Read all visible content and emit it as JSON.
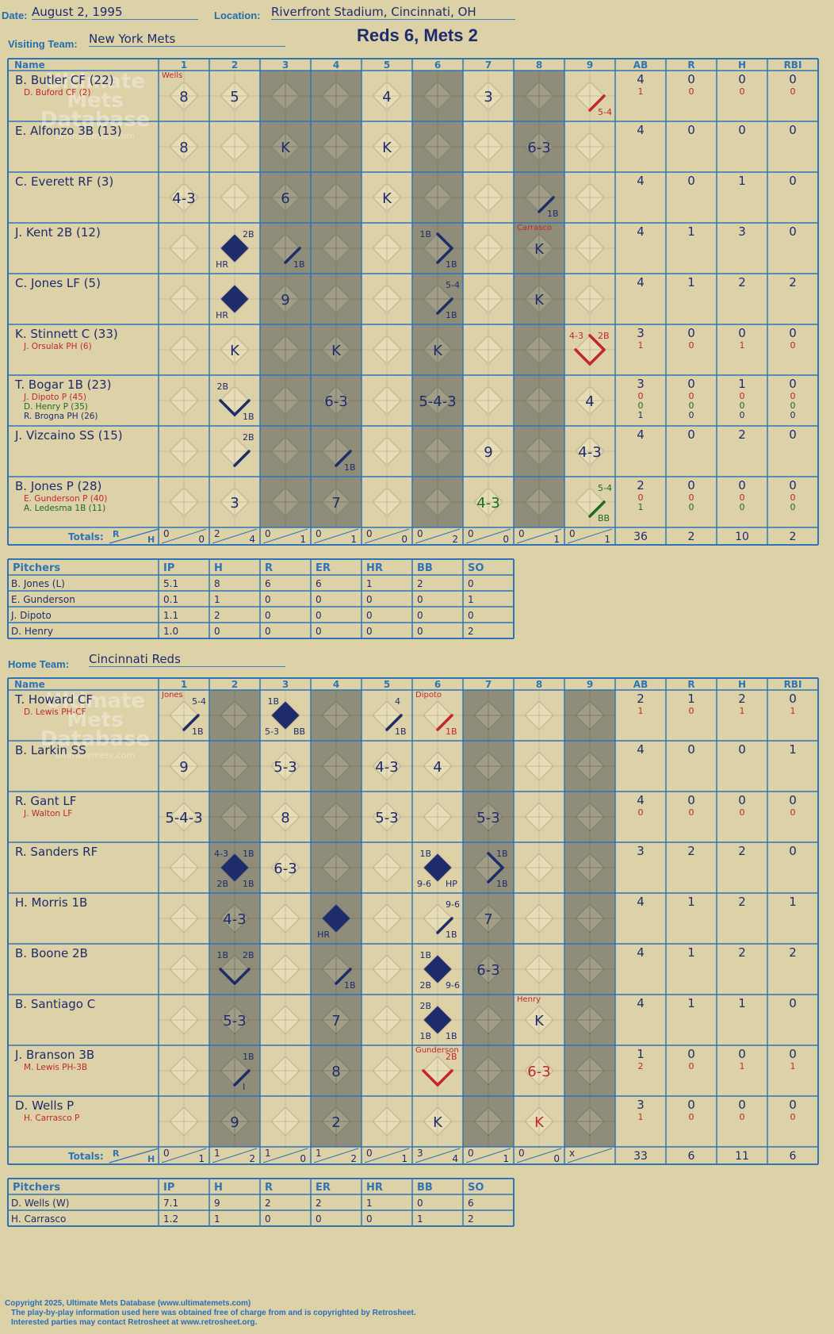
{
  "header": {
    "date_label": "Date:",
    "date": "August 2, 1995",
    "location_label": "Location:",
    "location": "Riverfront Stadium, Cincinnati, OH",
    "visiting_label": "Visiting Team:",
    "visiting_team": "New York Mets",
    "home_label": "Home Team:",
    "home_team": "Cincinnati Reds",
    "score_title": "Reds 6, Mets 2"
  },
  "colors": {
    "grid": "#2f74b5",
    "ink": "#1e2c6b",
    "red": "#c0282a",
    "green": "#1d6b1d",
    "shade": "#8f8c7a",
    "paper": "#ddd1a8"
  },
  "columns": {
    "name": "Name",
    "innings": [
      "1",
      "2",
      "3",
      "4",
      "5",
      "6",
      "7",
      "8",
      "9"
    ],
    "stats": [
      "AB",
      "R",
      "H",
      "RBI"
    ]
  },
  "totals_label": "Totals:",
  "rh_labels": [
    "R",
    "H"
  ],
  "watermark": [
    "Ultimate",
    "Mets",
    "Database",
    "ultimatemets.com"
  ],
  "visitors": {
    "shaded_innings": [
      3,
      4,
      6,
      8
    ],
    "rows": [
      {
        "name": "B. Butler CF (22)",
        "subs": [
          {
            "name": "D. Buford CF (2)",
            "color": "red"
          }
        ],
        "stats": [
          [
            "4",
            "0",
            "0",
            "0"
          ],
          [
            "1",
            "0",
            "0",
            "0"
          ]
        ],
        "stat_colors": [
          "ink",
          "red"
        ],
        "cells": {
          "1": {
            "text": "8",
            "note": "Wells",
            "noteColor": "red"
          },
          "2": {
            "text": "5"
          },
          "5": {
            "text": "4"
          },
          "7": {
            "text": "3"
          },
          "9": {
            "paths": [
              [
                3,
                4
              ]
            ],
            "pathColor": "red",
            "br": "5-4",
            "brColor": "red"
          }
        }
      },
      {
        "name": "E. Alfonzo 3B (13)",
        "subs": [],
        "stats": [
          [
            "4",
            "0",
            "0",
            "0"
          ]
        ],
        "stat_colors": [
          "ink"
        ],
        "cells": {
          "1": {
            "text": "8"
          },
          "3": {
            "text": "K"
          },
          "5": {
            "text": "K"
          },
          "8": {
            "text": "6-3"
          }
        }
      },
      {
        "name": "C. Everett RF (3)",
        "subs": [],
        "stats": [
          [
            "4",
            "0",
            "1",
            "0"
          ]
        ],
        "stat_colors": [
          "ink"
        ],
        "cells": {
          "1": {
            "text": "4-3"
          },
          "3": {
            "text": "6"
          },
          "5": {
            "text": "K"
          },
          "8": {
            "paths": [
              [
                3,
                4
              ]
            ],
            "br": "1B"
          }
        }
      },
      {
        "name": "J. Kent 2B (12)",
        "subs": [],
        "stats": [
          [
            "4",
            "1",
            "3",
            "0"
          ]
        ],
        "stat_colors": [
          "ink"
        ],
        "cells": {
          "2": {
            "fill": true,
            "tr": "2B",
            "bl": "HR"
          },
          "3": {
            "paths": [
              [
                3,
                4
              ]
            ],
            "br": "1B"
          },
          "6": {
            "paths": [
              [
                3,
                4
              ],
              [
                4,
                1
              ]
            ],
            "tl": "1B",
            "br": "1B"
          },
          "8": {
            "text": "K",
            "note": "Carrasco",
            "noteColor": "red"
          }
        }
      },
      {
        "name": "C. Jones LF (5)",
        "subs": [],
        "stats": [
          [
            "4",
            "1",
            "2",
            "2"
          ]
        ],
        "stat_colors": [
          "ink"
        ],
        "cells": {
          "2": {
            "fill": true,
            "bl": "HR"
          },
          "3": {
            "text": "9"
          },
          "6": {
            "paths": [
              [
                3,
                4
              ]
            ],
            "tr": "5-4",
            "br": "1B"
          },
          "8": {
            "text": "K"
          }
        }
      },
      {
        "name": "K. Stinnett C (33)",
        "subs": [
          {
            "name": "J. Orsulak PH (6)",
            "color": "red"
          }
        ],
        "stats": [
          [
            "3",
            "0",
            "0",
            "0"
          ],
          [
            "1",
            "0",
            "1",
            "0"
          ]
        ],
        "stat_colors": [
          "ink",
          "red"
        ],
        "cells": {
          "2": {
            "text": "K"
          },
          "4": {
            "text": "K"
          },
          "6": {
            "text": "K"
          },
          "9": {
            "paths": [
              [
                2,
                3
              ],
              [
                3,
                4
              ],
              [
                4,
                1
              ]
            ],
            "pathColor": "red",
            "tl": "4-3",
            "tr": "2B",
            "tlColor": "red",
            "trColor": "red"
          }
        }
      },
      {
        "name": "T. Bogar 1B (23)",
        "subs": [
          {
            "name": "J. Dipoto P (45)",
            "color": "red"
          },
          {
            "name": "D. Henry P (35)",
            "color": "green"
          },
          {
            "name": "R. Brogna PH (26)",
            "color": "ink"
          }
        ],
        "stats": [
          [
            "3",
            "0",
            "1",
            "0"
          ],
          [
            "0",
            "0",
            "0",
            "0"
          ],
          [
            "0",
            "0",
            "0",
            "0"
          ],
          [
            "1",
            "0",
            "0",
            "0"
          ]
        ],
        "stat_colors": [
          "ink",
          "red",
          "green",
          "ink"
        ],
        "cells": {
          "2": {
            "paths": [
              [
                2,
                3
              ],
              [
                3,
                4
              ]
            ],
            "tl": "2B",
            "br": "1B"
          },
          "4": {
            "text": "6-3"
          },
          "6": {
            "text": "5-4-3"
          },
          "9": {
            "text": "4"
          }
        }
      },
      {
        "name": "J. Vizcaino SS (15)",
        "subs": [],
        "stats": [
          [
            "4",
            "0",
            "2",
            "0"
          ]
        ],
        "stat_colors": [
          "ink"
        ],
        "cells": {
          "2": {
            "paths": [
              [
                3,
                4
              ]
            ],
            "tr": "2B"
          },
          "4": {
            "paths": [
              [
                3,
                4
              ]
            ],
            "br": "1B"
          },
          "7": {
            "text": "9"
          },
          "9": {
            "text": "4-3"
          }
        }
      },
      {
        "name": "B. Jones P (28)",
        "subs": [
          {
            "name": "E. Gunderson P (40)",
            "color": "red"
          },
          {
            "name": "A. Ledesma 1B (11)",
            "color": "green"
          }
        ],
        "stats": [
          [
            "2",
            "0",
            "0",
            "0"
          ],
          [
            "0",
            "0",
            "0",
            "0"
          ],
          [
            "1",
            "0",
            "0",
            "0"
          ]
        ],
        "stat_colors": [
          "ink",
          "red",
          "green"
        ],
        "cells": {
          "2": {
            "text": "3"
          },
          "4": {
            "text": "7"
          },
          "7": {
            "text": "4-3",
            "textColor": "green"
          },
          "9": {
            "paths": [
              [
                3,
                4
              ]
            ],
            "pathColor": "green",
            "tr": "5-4",
            "br": "BB",
            "trColor": "green",
            "brColor": "green"
          }
        }
      }
    ],
    "totals": [
      [
        "0",
        "0"
      ],
      [
        "2",
        "4"
      ],
      [
        "0",
        "1"
      ],
      [
        "0",
        "1"
      ],
      [
        "0",
        "0"
      ],
      [
        "0",
        "2"
      ],
      [
        "0",
        "0"
      ],
      [
        "0",
        "1"
      ],
      [
        "0",
        "1"
      ]
    ],
    "totals_stats": [
      "36",
      "2",
      "10",
      "2"
    ],
    "pitchers": {
      "headers": [
        "Pitchers",
        "IP",
        "H",
        "R",
        "ER",
        "HR",
        "BB",
        "SO"
      ],
      "rows": [
        [
          "B. Jones (L)",
          "5.1",
          "8",
          "6",
          "6",
          "1",
          "2",
          "0"
        ],
        [
          "E. Gunderson",
          "0.1",
          "1",
          "0",
          "0",
          "0",
          "0",
          "1"
        ],
        [
          "J. Dipoto",
          "1.1",
          "2",
          "0",
          "0",
          "0",
          "0",
          "0"
        ],
        [
          "D. Henry",
          "1.0",
          "0",
          "0",
          "0",
          "0",
          "0",
          "2"
        ]
      ]
    }
  },
  "home": {
    "shaded_innings": [
      2,
      4,
      7,
      9
    ],
    "rows": [
      {
        "name": "T. Howard CF",
        "subs": [
          {
            "name": "D. Lewis PH-CF",
            "color": "red"
          }
        ],
        "stats": [
          [
            "2",
            "1",
            "2",
            "0"
          ],
          [
            "1",
            "0",
            "1",
            "1"
          ]
        ],
        "stat_colors": [
          "ink",
          "red"
        ],
        "cells": {
          "1": {
            "paths": [
              [
                3,
                4
              ]
            ],
            "tr": "5-4",
            "br": "1B",
            "note": "Jones",
            "noteColor": "red"
          },
          "3": {
            "fill": true,
            "tl": "1B",
            "bl": "5-3",
            "br": "BB"
          },
          "5": {
            "paths": [
              [
                3,
                4
              ]
            ],
            "tr": "4",
            "br": "1B"
          },
          "6": {
            "paths": [
              [
                3,
                4
              ]
            ],
            "pathColor": "red",
            "br": "1B",
            "brColor": "red",
            "note": "Dipoto",
            "noteColor": "red"
          }
        }
      },
      {
        "name": "B. Larkin SS",
        "subs": [],
        "stats": [
          [
            "4",
            "0",
            "0",
            "1"
          ]
        ],
        "stat_colors": [
          "ink"
        ],
        "cells": {
          "1": {
            "text": "9"
          },
          "3": {
            "text": "5-3"
          },
          "5": {
            "text": "4-3"
          },
          "6": {
            "text": "4"
          }
        }
      },
      {
        "name": "R. Gant LF",
        "subs": [
          {
            "name": "J. Walton LF",
            "color": "red"
          }
        ],
        "stats": [
          [
            "4",
            "0",
            "0",
            "0"
          ],
          [
            "0",
            "0",
            "0",
            "0"
          ]
        ],
        "stat_colors": [
          "ink",
          "red"
        ],
        "cells": {
          "1": {
            "text": "5-4-3"
          },
          "3": {
            "text": "8"
          },
          "5": {
            "text": "5-3"
          },
          "7": {
            "text": "5-3"
          }
        }
      },
      {
        "name": "R. Sanders RF",
        "subs": [],
        "stats": [
          [
            "3",
            "2",
            "2",
            "0"
          ]
        ],
        "stat_colors": [
          "ink"
        ],
        "cells": {
          "2": {
            "fill": true,
            "tl": "4-3",
            "tr": "1B",
            "bl": "2B",
            "br": "1B"
          },
          "3": {
            "text": "6-3"
          },
          "6": {
            "fill": true,
            "tl": "1B",
            "bl": "9-6",
            "br": "HP"
          },
          "7": {
            "paths": [
              [
                3,
                4
              ],
              [
                4,
                1
              ]
            ],
            "tr": "1B",
            "br": "1B"
          }
        }
      },
      {
        "name": "H. Morris 1B",
        "subs": [],
        "stats": [
          [
            "4",
            "1",
            "2",
            "1"
          ]
        ],
        "stat_colors": [
          "ink"
        ],
        "cells": {
          "2": {
            "text": "4-3"
          },
          "4": {
            "fill": true,
            "bl": "HR"
          },
          "6": {
            "paths": [
              [
                3,
                4
              ]
            ],
            "tr": "9-6",
            "br": "1B"
          },
          "7": {
            "text": "7"
          }
        }
      },
      {
        "name": "B. Boone 2B",
        "subs": [],
        "stats": [
          [
            "4",
            "1",
            "2",
            "2"
          ]
        ],
        "stat_colors": [
          "ink"
        ],
        "cells": {
          "2": {
            "paths": [
              [
                2,
                3
              ],
              [
                3,
                4
              ]
            ],
            "tl": "1B",
            "tr": "2B"
          },
          "4": {
            "paths": [
              [
                3,
                4
              ]
            ],
            "br": "1B"
          },
          "6": {
            "fill": true,
            "tl": "1B",
            "bl": "2B",
            "br": "9-6"
          },
          "7": {
            "text": "6-3"
          }
        }
      },
      {
        "name": "B. Santiago C",
        "subs": [],
        "stats": [
          [
            "4",
            "1",
            "1",
            "0"
          ]
        ],
        "stat_colors": [
          "ink"
        ],
        "cells": {
          "2": {
            "text": "5-3"
          },
          "4": {
            "text": "7"
          },
          "6": {
            "fill": true,
            "tl": "2B",
            "bl": "1B",
            "br": "1B"
          },
          "8": {
            "text": "K",
            "note": "Henry",
            "noteColor": "red"
          }
        }
      },
      {
        "name": "J. Branson 3B",
        "subs": [
          {
            "name": "M. Lewis PH-3B",
            "color": "red"
          }
        ],
        "stats": [
          [
            "1",
            "0",
            "0",
            "0"
          ],
          [
            "2",
            "0",
            "1",
            "1"
          ]
        ],
        "stat_colors": [
          "ink",
          "red"
        ],
        "cells": {
          "2": {
            "paths": [
              [
                3,
                4
              ]
            ],
            "tr": "1B",
            "br": "I"
          },
          "4": {
            "text": "8"
          },
          "6": {
            "paths": [
              [
                2,
                3
              ],
              [
                3,
                4
              ]
            ],
            "pathColor": "red",
            "tr": "2B",
            "trColor": "red",
            "note": "Gunderson",
            "noteColor": "red"
          },
          "8": {
            "text": "6-3",
            "textColor": "red"
          }
        }
      },
      {
        "name": "D. Wells P",
        "subs": [
          {
            "name": "H. Carrasco P",
            "color": "red"
          }
        ],
        "stats": [
          [
            "3",
            "0",
            "0",
            "0"
          ],
          [
            "1",
            "0",
            "0",
            "0"
          ]
        ],
        "stat_colors": [
          "ink",
          "red"
        ],
        "cells": {
          "2": {
            "text": "9"
          },
          "4": {
            "text": "2"
          },
          "6": {
            "text": "K"
          },
          "8": {
            "text": "K",
            "textColor": "red"
          }
        }
      }
    ],
    "totals": [
      [
        "0",
        "1"
      ],
      [
        "1",
        "2"
      ],
      [
        "1",
        "0"
      ],
      [
        "1",
        "2"
      ],
      [
        "0",
        "1"
      ],
      [
        "3",
        "4"
      ],
      [
        "0",
        "1"
      ],
      [
        "0",
        "0"
      ],
      [
        "x",
        ""
      ]
    ],
    "totals_stats": [
      "33",
      "6",
      "11",
      "6"
    ],
    "pitchers": {
      "headers": [
        "Pitchers",
        "IP",
        "H",
        "R",
        "ER",
        "HR",
        "BB",
        "SO"
      ],
      "rows": [
        [
          "D. Wells (W)",
          "7.1",
          "9",
          "2",
          "2",
          "1",
          "0",
          "6"
        ],
        [
          "H. Carrasco",
          "1.2",
          "1",
          "0",
          "0",
          "0",
          "1",
          "2"
        ]
      ]
    }
  },
  "footer": {
    "line1": "Copyright 2025, Ultimate Mets Database (www.ultimatemets.com)",
    "line2": "The play-by-play information used here was obtained free of charge from and is copyrighted by Retrosheet.",
    "line3": "Interested parties may contact Retrosheet at www.retrosheet.org."
  }
}
